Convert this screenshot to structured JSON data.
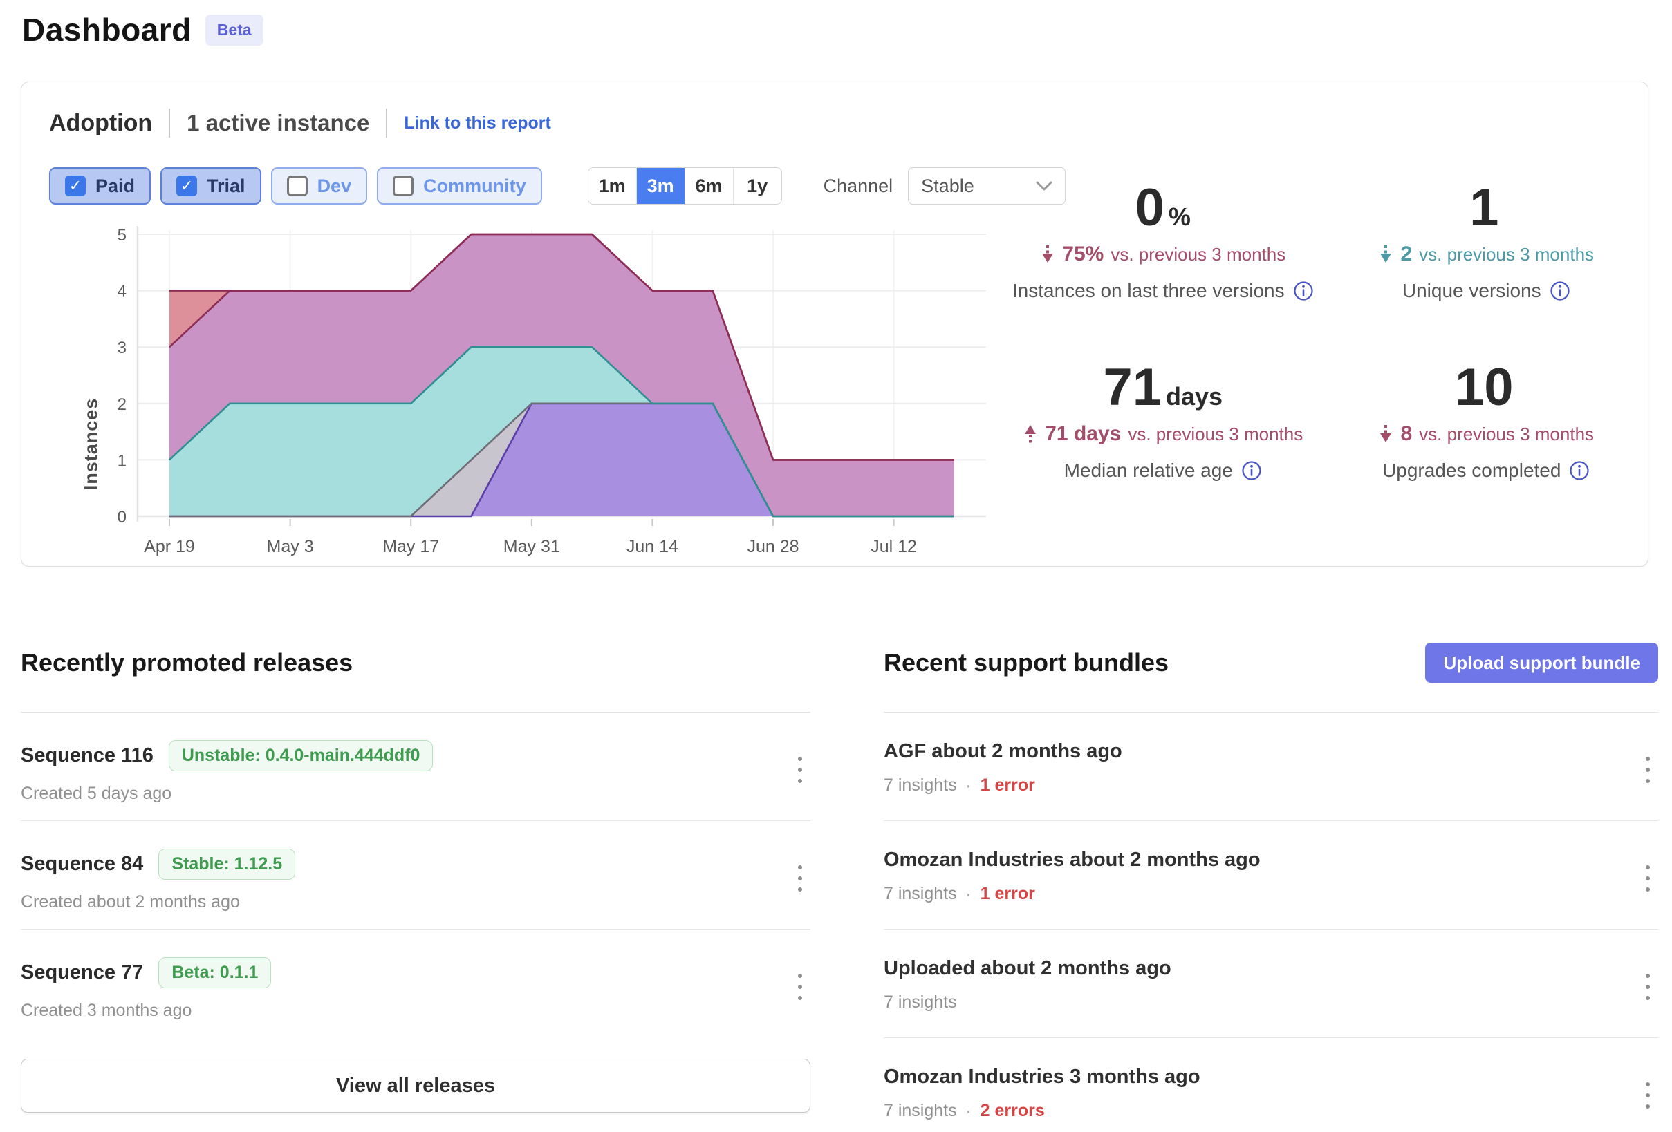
{
  "page": {
    "title": "Dashboard",
    "badge": "Beta"
  },
  "adoption": {
    "title": "Adoption",
    "subtitle": "1 active instance",
    "link": "Link to this report",
    "filters": [
      {
        "label": "Paid",
        "checked": true
      },
      {
        "label": "Trial",
        "checked": true
      },
      {
        "label": "Dev",
        "checked": false
      },
      {
        "label": "Community",
        "checked": false
      }
    ],
    "ranges": [
      {
        "label": "1m",
        "selected": false
      },
      {
        "label": "3m",
        "selected": true
      },
      {
        "label": "6m",
        "selected": false
      },
      {
        "label": "1y",
        "selected": false
      }
    ],
    "channel_label": "Channel",
    "channel_value": "Stable",
    "stats": [
      {
        "value": "0",
        "unit": "%",
        "direction": "down",
        "delta": "75%",
        "delta_suffix": "vs. previous 3 months",
        "trend_color": "#a34d68",
        "label": "Instances on last three versions"
      },
      {
        "value": "1",
        "unit": "",
        "direction": "down",
        "delta": "2",
        "delta_suffix": "vs. previous 3 months",
        "trend_color": "#4d99a6",
        "label": "Unique versions"
      },
      {
        "value": "71",
        "unit": "days",
        "direction": "up",
        "delta": "71 days",
        "delta_suffix": "vs. previous 3 months",
        "trend_color": "#a34d68",
        "label": "Median relative age"
      },
      {
        "value": "10",
        "unit": "",
        "direction": "down",
        "delta": "8",
        "delta_suffix": "vs. previous 3 months",
        "trend_color": "#a34d68",
        "label": "Upgrades completed"
      }
    ]
  },
  "chart_data": {
    "type": "area",
    "stacked": true,
    "title": "",
    "xlabel": "",
    "ylabel": "Instances",
    "ylim": [
      0,
      5
    ],
    "yticks": [
      0,
      1,
      2,
      3,
      4,
      5
    ],
    "x": [
      "Apr 19",
      "Apr 26",
      "May 3",
      "May 10",
      "May 17",
      "May 24",
      "May 31",
      "Jun 7",
      "Jun 14",
      "Jun 21",
      "Jun 28",
      "Jul 5",
      "Jul 12",
      "Jul 19"
    ],
    "x_tick_labels": [
      "Apr 19",
      "May 3",
      "May 17",
      "May 31",
      "Jun 14",
      "Jun 28",
      "Jul 12"
    ],
    "legend": "none",
    "grid": true,
    "series": [
      {
        "name": "purple",
        "fill": "#a88fe0",
        "stroke": "#5b3fa8",
        "values": [
          0,
          0,
          0,
          0,
          0,
          0,
          2,
          2,
          2,
          2,
          0,
          0,
          0,
          0
        ]
      },
      {
        "name": "gray",
        "fill": "#c8c5ce",
        "stroke": "#6e6e78",
        "values": [
          0,
          0,
          0,
          0,
          0,
          1,
          0,
          0,
          0,
          0,
          0,
          0,
          0,
          0
        ]
      },
      {
        "name": "teal",
        "fill": "#a6dedd",
        "stroke": "#2f8f93",
        "values": [
          1,
          2,
          2,
          2,
          2,
          2,
          1,
          1,
          0,
          0,
          0,
          0,
          0,
          0
        ]
      },
      {
        "name": "plum",
        "fill": "#ca93c5",
        "stroke": "#8c2e55",
        "values": [
          2,
          2,
          2,
          2,
          2,
          2,
          2,
          2,
          2,
          2,
          1,
          1,
          1,
          1
        ]
      },
      {
        "name": "red",
        "fill": "#de909a",
        "stroke": "#8c2e55",
        "values": [
          1,
          0,
          0,
          0,
          0,
          0,
          0,
          0,
          0,
          0,
          0,
          0,
          0,
          0
        ]
      }
    ]
  },
  "releases": {
    "heading": "Recently promoted releases",
    "view_all_label": "View all releases",
    "items": [
      {
        "name": "Sequence 116",
        "channel_tag": "Unstable: 0.4.0-main.444ddf0",
        "created": "Created 5 days ago"
      },
      {
        "name": "Sequence 84",
        "channel_tag": "Stable: 1.12.5",
        "created": "Created about 2 months ago"
      },
      {
        "name": "Sequence 77",
        "channel_tag": "Beta: 0.1.1",
        "created": "Created 3 months ago"
      }
    ]
  },
  "bundles": {
    "heading": "Recent support bundles",
    "upload_label": "Upload support bundle",
    "separator": "·",
    "items": [
      {
        "title": "AGF about 2 months ago",
        "insights": "7 insights",
        "errors": "1 error"
      },
      {
        "title": "Omozan Industries about 2 months ago",
        "insights": "7 insights",
        "errors": "1 error"
      },
      {
        "title": "Uploaded about 2 months ago",
        "insights": "7 insights",
        "errors": null
      },
      {
        "title": "Omozan Industries 3 months ago",
        "insights": "7 insights",
        "errors": "2 errors"
      }
    ]
  },
  "colors": {
    "accent_link": "#3a67d8",
    "selected_range": "#4a7df0",
    "upload_button": "#6e76e8",
    "trend_down_rose": "#a34d68",
    "trend_down_teal": "#4d99a6",
    "release_tag_green": "#3f9b50",
    "error_red": "#d64545"
  }
}
